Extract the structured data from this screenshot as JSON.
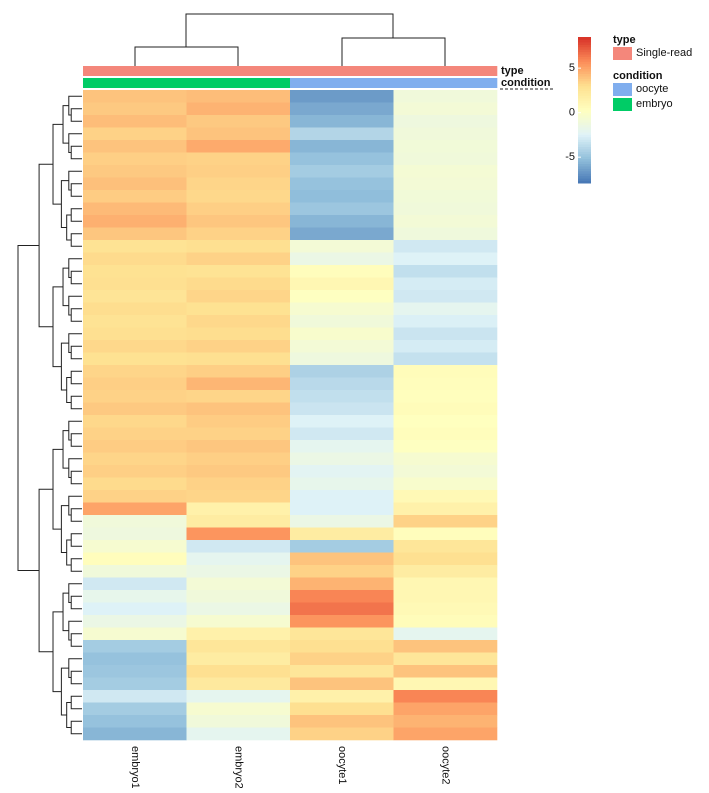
{
  "chart_data": {
    "type": "heatmap",
    "columns": [
      "embryo1",
      "embryo2",
      "oocyte1",
      "oocyte2"
    ],
    "rows": [
      [
        4,
        4.2,
        -6.5,
        -1
      ],
      [
        3.8,
        4.5,
        -6,
        -0.8
      ],
      [
        4.2,
        3.8,
        -5.5,
        -1.2
      ],
      [
        3.5,
        4,
        -4,
        -1
      ],
      [
        4,
        4.8,
        -5.5,
        -0.9
      ],
      [
        3.6,
        3.5,
        -5,
        -1
      ],
      [
        3.8,
        3.6,
        -4.5,
        -0.7
      ],
      [
        4.1,
        3.4,
        -5,
        -0.8
      ],
      [
        3.7,
        3.3,
        -5.2,
        -0.9
      ],
      [
        4.3,
        3.6,
        -4.8,
        -1
      ],
      [
        4.6,
        3.9,
        -5.5,
        -0.8
      ],
      [
        3.9,
        3.5,
        -6,
        -1.1
      ],
      [
        2.8,
        3,
        -0.8,
        -3
      ],
      [
        3.2,
        3.5,
        -1.5,
        -2.5
      ],
      [
        2.9,
        2.8,
        0.5,
        -3.5
      ],
      [
        3,
        3.2,
        1,
        -2.8
      ],
      [
        2.7,
        3.4,
        0.2,
        -3
      ],
      [
        3.1,
        2.9,
        -0.5,
        -2
      ],
      [
        2.8,
        3.3,
        -1,
        -2.6
      ],
      [
        3,
        3.1,
        -0.3,
        -3.2
      ],
      [
        3.3,
        3.5,
        -0.8,
        -2.8
      ],
      [
        2.9,
        3,
        -1.2,
        -3.4
      ],
      [
        3.4,
        3.6,
        -4.2,
        0.6
      ],
      [
        3.6,
        4.4,
        -3.8,
        0.5
      ],
      [
        3.5,
        3.4,
        -3.5,
        0.4
      ],
      [
        3.8,
        4,
        -3.2,
        0.6
      ],
      [
        3.3,
        3.7,
        -2.5,
        0.3
      ],
      [
        3.5,
        3.5,
        -3,
        0.5
      ],
      [
        3.7,
        3.9,
        -2,
        0.2
      ],
      [
        3.4,
        3.6,
        -1.5,
        -0.5
      ],
      [
        3.6,
        3.8,
        -2.2,
        -0.8
      ],
      [
        3.2,
        3.5,
        -1.8,
        -0.3
      ],
      [
        3.5,
        3.4,
        -2.5,
        0.8
      ],
      [
        5,
        1.5,
        -2.5,
        1.5
      ],
      [
        -1,
        2,
        -1.5,
        3.5
      ],
      [
        -1.2,
        5.5,
        2,
        0.5
      ],
      [
        -0.5,
        -3,
        -4.5,
        2.5
      ],
      [
        0.5,
        -2,
        4,
        3
      ],
      [
        -1,
        -1.5,
        3.5,
        2
      ],
      [
        -3,
        -0.8,
        4.5,
        1
      ],
      [
        -1.8,
        -1,
        6,
        1
      ],
      [
        -2.5,
        -1.5,
        6.5,
        0.8
      ],
      [
        -1.5,
        -0.5,
        5.5,
        0.6
      ],
      [
        -0.5,
        1.5,
        2.5,
        -2
      ],
      [
        -4.5,
        2.5,
        3,
        4
      ],
      [
        -5,
        2,
        3.5,
        2.5
      ],
      [
        -4.8,
        3,
        2.5,
        4
      ],
      [
        -4.5,
        2.2,
        4,
        1
      ],
      [
        -3,
        -2,
        1.5,
        6
      ],
      [
        -4.5,
        -0.5,
        3,
        5
      ],
      [
        -5,
        -1,
        4,
        4.5
      ],
      [
        -5.5,
        -2,
        3.5,
        5
      ]
    ],
    "colors": [
      "#4575B4",
      "#91BFDB",
      "#E0F3F8",
      "#FFFFBF",
      "#FEE090",
      "#FC8D59",
      "#D73027"
    ],
    "clim": [
      -7.9,
      8.5
    ],
    "colorbar_ticks": [
      -5,
      0,
      5
    ],
    "annotation_rows": [
      {
        "name": "type",
        "values": [
          "Single-read",
          "Single-read",
          "Single-read",
          "Single-read"
        ]
      },
      {
        "name": "condition",
        "values": [
          "embryo",
          "embryo",
          "oocyte",
          "oocyte"
        ]
      }
    ],
    "annotation_legend": [
      {
        "title": "type",
        "items": [
          {
            "label": "Single-read",
            "color": "#F4877B"
          }
        ]
      },
      {
        "title": "condition",
        "items": [
          {
            "label": "oocyte",
            "color": "#80AEEE"
          },
          {
            "label": "embryo",
            "color": "#00CC66"
          }
        ]
      }
    ]
  }
}
